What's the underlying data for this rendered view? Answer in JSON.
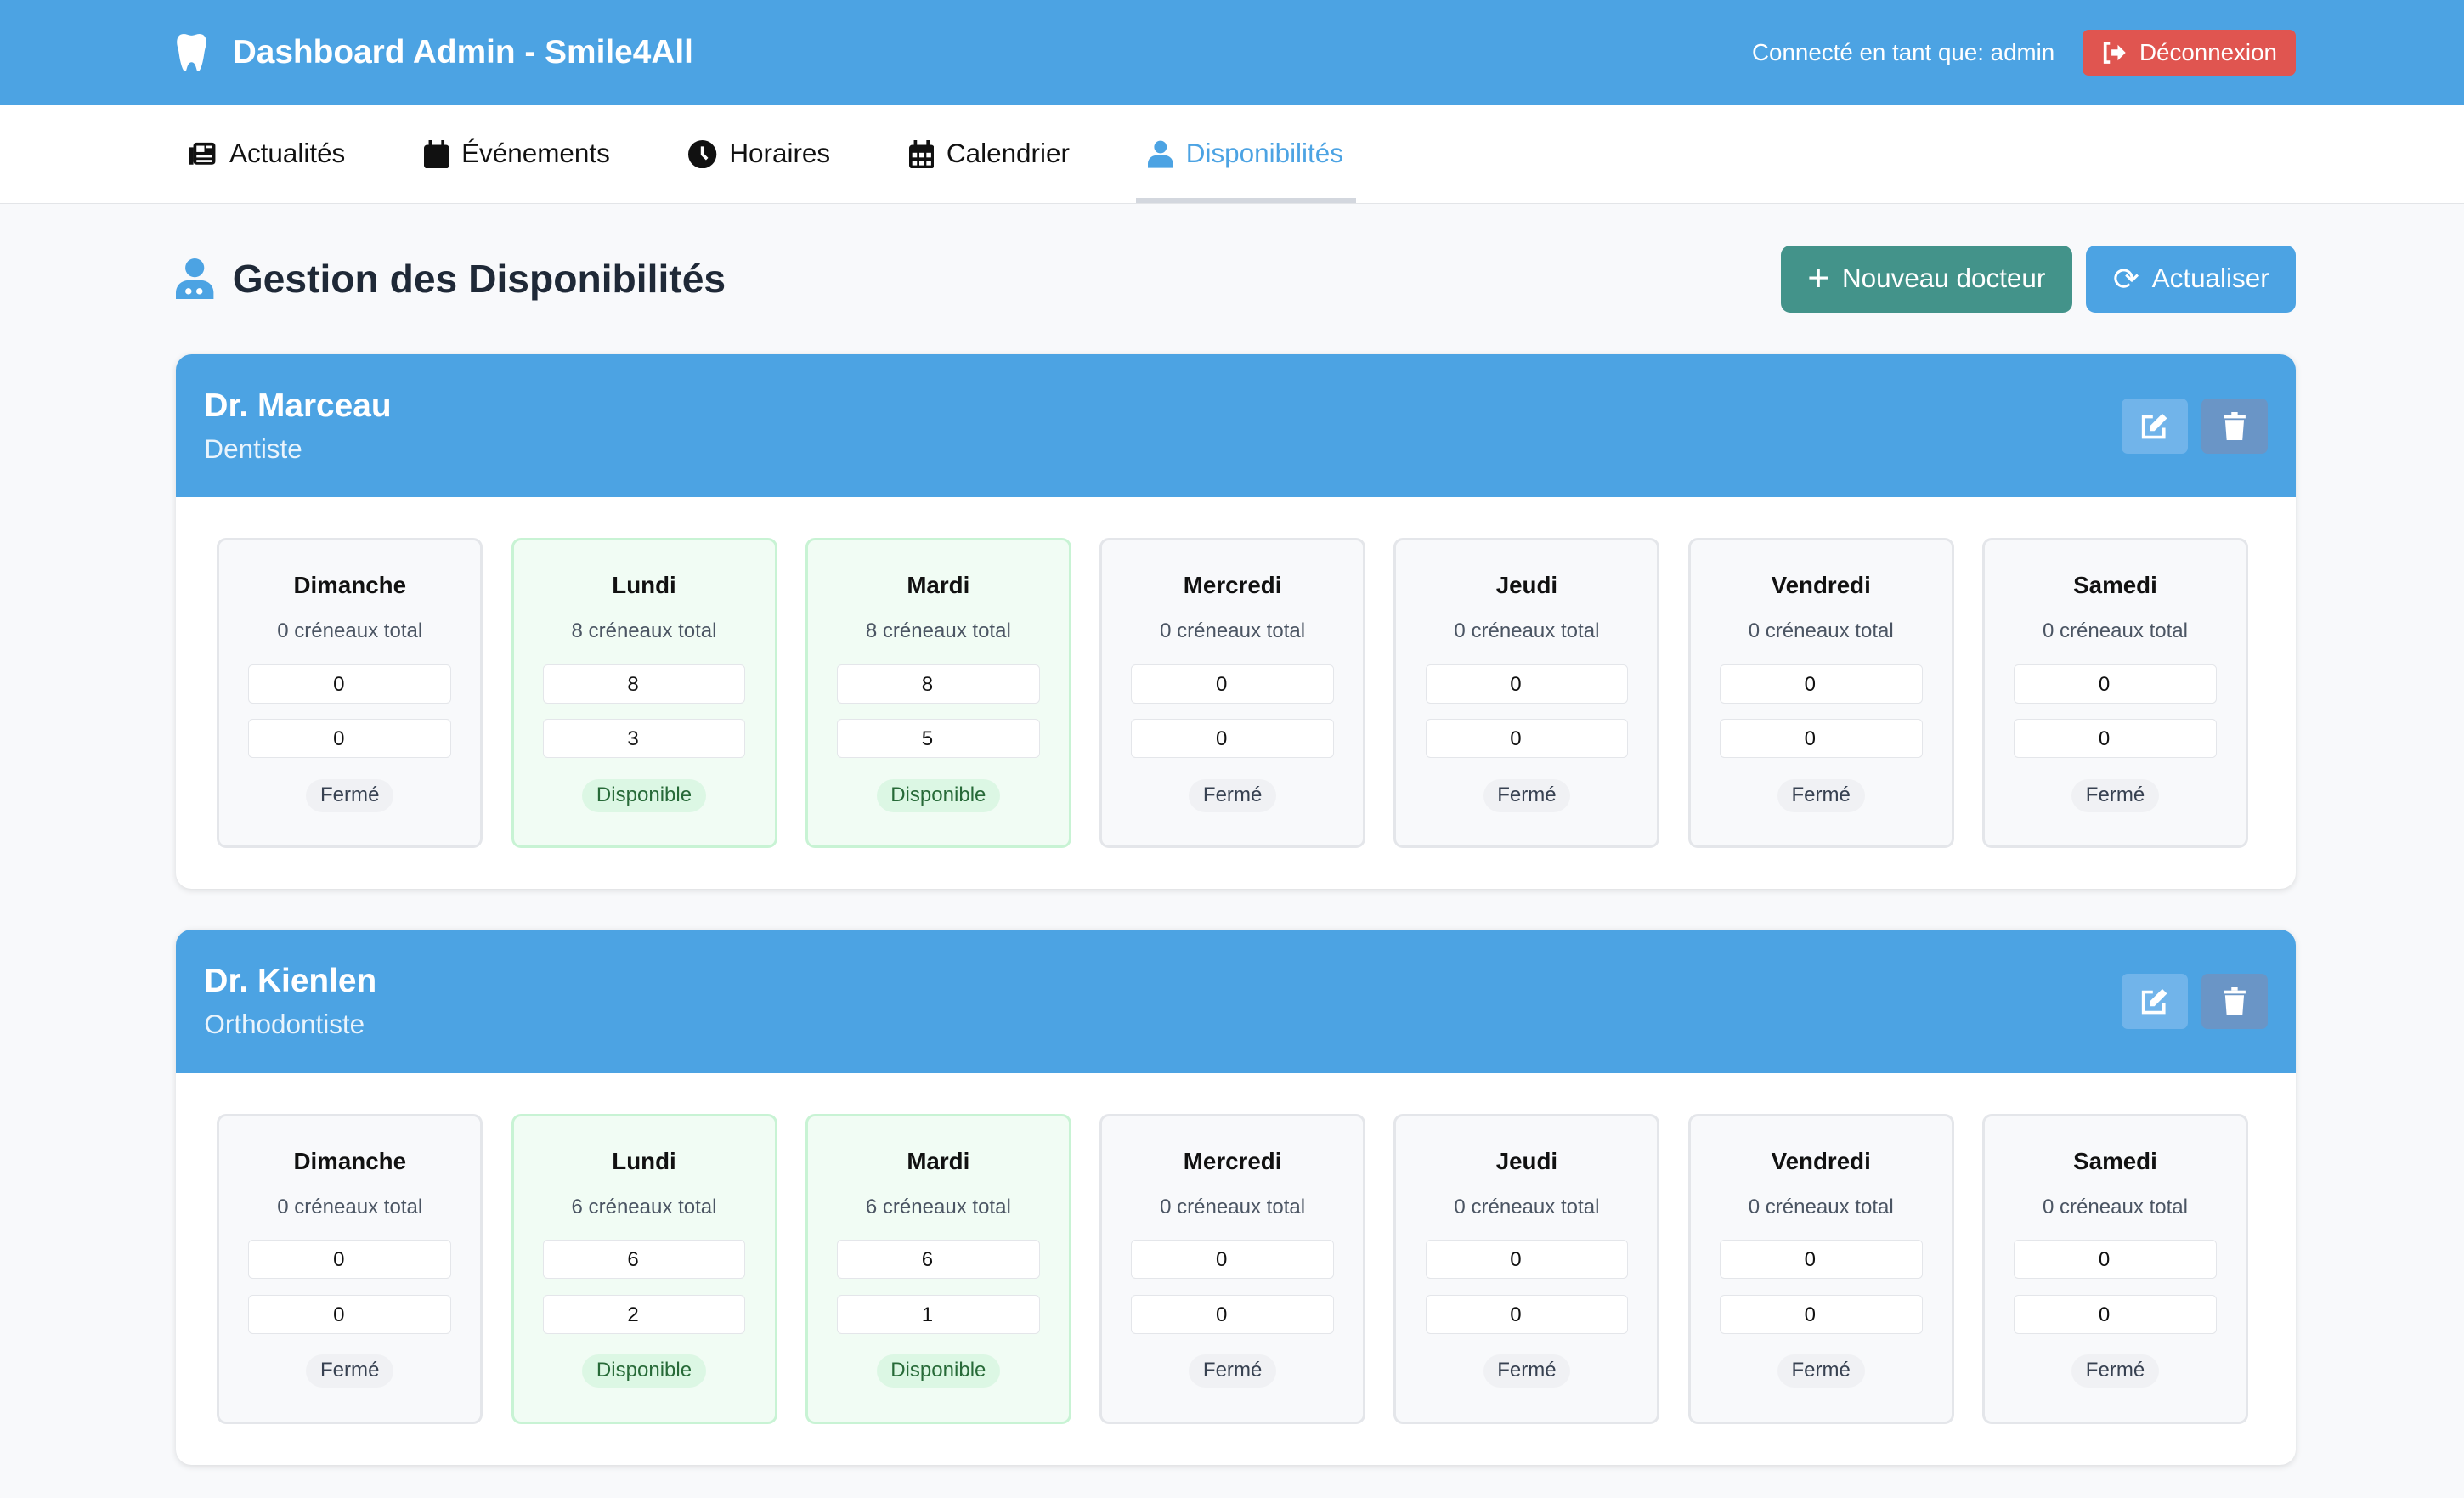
{
  "header": {
    "title": "Dashboard Admin - Smile4All",
    "user_text": "Connecté en tant que: admin",
    "logout_label": "Déconnexion"
  },
  "nav": {
    "tabs": [
      {
        "label": "Actualités",
        "icon": "newspaper-icon"
      },
      {
        "label": "Événements",
        "icon": "calendar-day-icon"
      },
      {
        "label": "Horaires",
        "icon": "clock-icon"
      },
      {
        "label": "Calendrier",
        "icon": "calendar-icon"
      },
      {
        "label": "Disponibilités",
        "icon": "user-doctor-icon",
        "active": true
      }
    ]
  },
  "page": {
    "title": "Gestion des Disponibilités",
    "new_doctor_label": "Nouveau docteur",
    "refresh_label": "Actualiser"
  },
  "colors": {
    "primary": "#4ca3e3",
    "success": "#43938a",
    "danger": "#e05550"
  },
  "doctors": [
    {
      "name": "Dr. Marceau",
      "specialty": "Dentiste",
      "days": [
        {
          "day": "Dimanche",
          "total": "0 créneaux total",
          "v1": "0",
          "v2": "0",
          "status": "Fermé",
          "open": false
        },
        {
          "day": "Lundi",
          "total": "8 créneaux total",
          "v1": "8",
          "v2": "3",
          "status": "Disponible",
          "open": true
        },
        {
          "day": "Mardi",
          "total": "8 créneaux total",
          "v1": "8",
          "v2": "5",
          "status": "Disponible",
          "open": true
        },
        {
          "day": "Mercredi",
          "total": "0 créneaux total",
          "v1": "0",
          "v2": "0",
          "status": "Fermé",
          "open": false
        },
        {
          "day": "Jeudi",
          "total": "0 créneaux total",
          "v1": "0",
          "v2": "0",
          "status": "Fermé",
          "open": false
        },
        {
          "day": "Vendredi",
          "total": "0 créneaux total",
          "v1": "0",
          "v2": "0",
          "status": "Fermé",
          "open": false
        },
        {
          "day": "Samedi",
          "total": "0 créneaux total",
          "v1": "0",
          "v2": "0",
          "status": "Fermé",
          "open": false
        }
      ]
    },
    {
      "name": "Dr. Kienlen",
      "specialty": "Orthodontiste",
      "days": [
        {
          "day": "Dimanche",
          "total": "0 créneaux total",
          "v1": "0",
          "v2": "0",
          "status": "Fermé",
          "open": false
        },
        {
          "day": "Lundi",
          "total": "6 créneaux total",
          "v1": "6",
          "v2": "2",
          "status": "Disponible",
          "open": true
        },
        {
          "day": "Mardi",
          "total": "6 créneaux total",
          "v1": "6",
          "v2": "1",
          "status": "Disponible",
          "open": true
        },
        {
          "day": "Mercredi",
          "total": "0 créneaux total",
          "v1": "0",
          "v2": "0",
          "status": "Fermé",
          "open": false
        },
        {
          "day": "Jeudi",
          "total": "0 créneaux total",
          "v1": "0",
          "v2": "0",
          "status": "Fermé",
          "open": false
        },
        {
          "day": "Vendredi",
          "total": "0 créneaux total",
          "v1": "0",
          "v2": "0",
          "status": "Fermé",
          "open": false
        },
        {
          "day": "Samedi",
          "total": "0 créneaux total",
          "v1": "0",
          "v2": "0",
          "status": "Fermé",
          "open": false
        }
      ]
    }
  ]
}
